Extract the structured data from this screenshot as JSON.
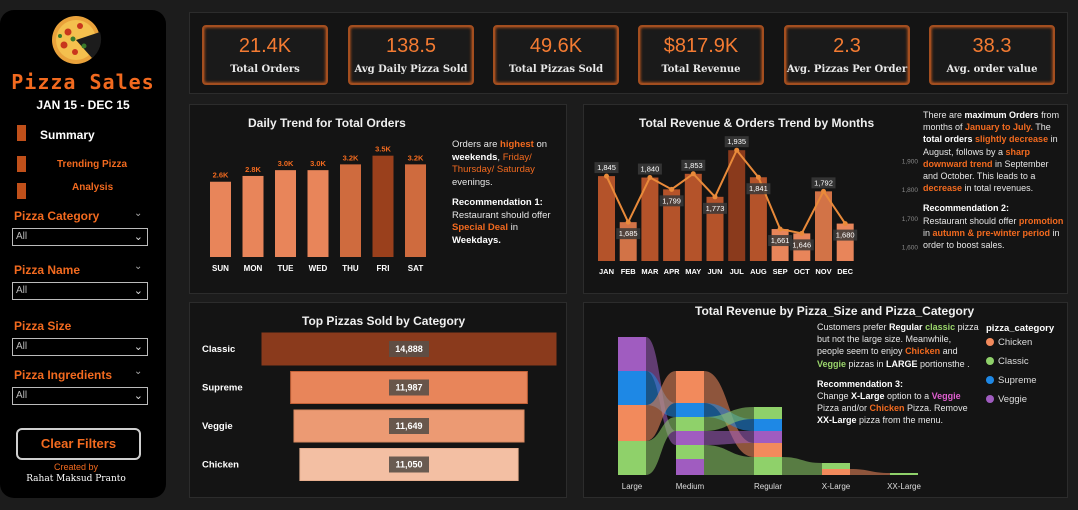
{
  "sidebar": {
    "title": "Pizza Sales",
    "date_range": "JAN 15 - DEC 15",
    "nav": [
      {
        "label": "Summary"
      },
      {
        "label": "Trending Pizza"
      },
      {
        "label": "Analysis"
      }
    ],
    "filters": [
      {
        "label": "Pizza Category",
        "value": "All"
      },
      {
        "label": "Pizza Name",
        "value": "All"
      },
      {
        "label": "Pizza Size",
        "value": "All"
      },
      {
        "label": "Pizza Ingredients",
        "value": "All"
      }
    ],
    "clear_button": "Clear Filters",
    "created_by_label": "Created by",
    "author": "Rahat Maksud Pranto"
  },
  "colors": {
    "accent": "#f26a1f",
    "background": "#1c1c1c",
    "panel": "#141414",
    "bar_light": "#e8855a",
    "bar_dark": "#8a3a1c"
  },
  "kpis": [
    {
      "value": "21.4K",
      "label": "Total Orders"
    },
    {
      "value": "138.5",
      "label": "Avg Daily Pizza Sold"
    },
    {
      "value": "49.6K",
      "label": "Total Pizzas Sold"
    },
    {
      "value": "$817.9K",
      "label": "Total Revenue"
    },
    {
      "value": "2.3",
      "label": "Avg. Pizzas Per Order"
    },
    {
      "value": "38.3",
      "label": "Avg. order value"
    }
  ],
  "daily_panel": {
    "title": "Daily Trend for Total Orders",
    "note_a": "Orders are ",
    "note_b": "highest",
    "note_c": " on ",
    "note_d": "weekends",
    "note_e": ", ",
    "note_f": "Friday/ Thursday/ Saturday",
    "note_g": " evenings.",
    "rec_title": "Recommendation 1:",
    "rec_a": "Restaurant should offer ",
    "rec_b": "Special Deal",
    "rec_c": "  in ",
    "rec_d": "Weekdays."
  },
  "monthly_panel": {
    "title": "Total Revenue & Orders Trend by Months",
    "p1_a": "There are ",
    "p1_b": "maximum Orders",
    "p1_c": " from months of ",
    "p1_d": "January to July.",
    "p1_e": " The ",
    "p1_f": "total orders",
    "p1_g": " ",
    "p1_h": "slightly decrease",
    "p1_i": " in August, follows by a ",
    "p1_j": "sharp downward trend",
    "p1_k": " in September and October. This leads to a ",
    "p1_l": "decrease",
    "p1_m": " in total revenues.",
    "rec_title": "Recommendation 2:",
    "rec_a": "Restaurant should offer ",
    "rec_b": "promotion",
    "rec_c": "  in ",
    "rec_d": "autumn & pre-winter period",
    "rec_e": " in order to boost sales."
  },
  "category_panel": {
    "title": "Top Pizzas Sold by Category"
  },
  "size_panel": {
    "title": "Total Revenue by Pizza_Size and Pizza_Category",
    "n_a": "Customers prefer ",
    "n_b": "Regular",
    "n_c": " ",
    "n_d": "classic",
    "n_e": " pizza but not the large size. Meanwhile, people seem to enjoy ",
    "n_f": "Chicken",
    "n_g": " and ",
    "n_h": "Veggie",
    "n_i": " pizzas in ",
    "n_j": "LARGE",
    "n_k": " portionsthe .",
    "rec_title": "Recommendation 3:",
    "rec_a": "Change ",
    "rec_b": "X-Large",
    "rec_c": " option to a ",
    "rec_d": "Veggie",
    "rec_e": " Pizza and/or ",
    "rec_f": "Chicken",
    "rec_g": " Pizza. Remove ",
    "rec_h": "XX-Large",
    "rec_i": " pizza from the menu.",
    "legend_title": "pizza_category"
  },
  "chart_data": [
    {
      "type": "bar",
      "title": "Daily Trend for Total Orders",
      "categories": [
        "SUN",
        "MON",
        "TUE",
        "WED",
        "THU",
        "FRI",
        "SAT"
      ],
      "values": [
        2.6,
        2.8,
        3.0,
        3.0,
        3.2,
        3.5,
        3.2
      ],
      "labels": [
        "2.6K",
        "2.8K",
        "3.0K",
        "3.0K",
        "3.2K",
        "3.5K",
        "3.2K"
      ],
      "ylim": [
        0,
        3.8
      ]
    },
    {
      "type": "bar",
      "title": "Total Revenue & Orders Trend by Months",
      "categories": [
        "JAN",
        "FEB",
        "MAR",
        "APR",
        "MAY",
        "JUN",
        "JUL",
        "AUG",
        "SEP",
        "OCT",
        "NOV",
        "DEC"
      ],
      "series": [
        {
          "values": [
            1845,
            1685,
            1840,
            1799,
            1853,
            1773,
            1935,
            1841,
            1661,
            1646,
            1792,
            1680
          ]
        }
      ],
      "line_series": [
        1845,
        1685,
        1840,
        1799,
        1853,
        1773,
        1935,
        1841,
        1661,
        1646,
        1792,
        1680
      ],
      "y_ticks": [
        "1,900",
        "1,800",
        "1,700",
        "1,600"
      ],
      "ylim": [
        1550,
        1960
      ]
    },
    {
      "type": "bar",
      "title": "Top Pizzas Sold by Category",
      "categories": [
        "Classic",
        "Supreme",
        "Veggie",
        "Chicken"
      ],
      "values": [
        14888,
        11987,
        11649,
        11050
      ],
      "labels": [
        "14,888",
        "11,987",
        "11,649",
        "11,050"
      ]
    },
    {
      "type": "area",
      "title": "Total Revenue by Pizza_Size and Pizza_Category",
      "x": [
        "Large",
        "Medium",
        "Regular",
        "X-Large",
        "XX-Large"
      ],
      "series": [
        {
          "name": "Chicken",
          "color": "#f28a5c"
        },
        {
          "name": "Classic",
          "color": "#8fd16a"
        },
        {
          "name": "Supreme",
          "color": "#1e88e5"
        },
        {
          "name": "Veggie",
          "color": "#a05cc0"
        }
      ]
    }
  ]
}
